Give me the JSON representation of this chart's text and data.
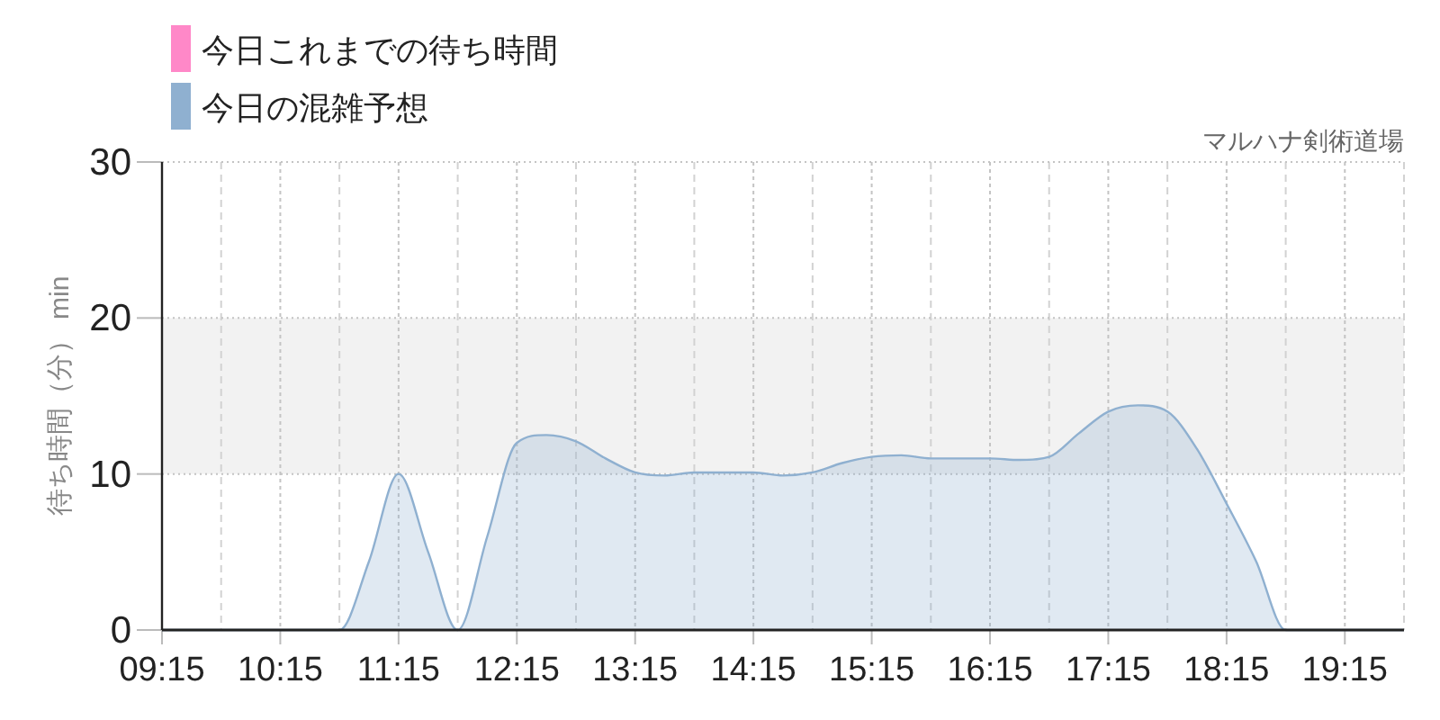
{
  "chart_data": {
    "type": "area",
    "title": "マルハナ剣術道場",
    "ylabel": "待ち時間（分） min",
    "x": [
      9.25,
      9.5,
      9.75,
      10,
      10.25,
      10.5,
      10.75,
      11,
      11.25,
      11.5,
      11.75,
      12,
      12.25,
      12.5,
      12.75,
      13,
      13.25,
      13.5,
      13.75,
      14,
      14.25,
      14.5,
      14.75,
      15,
      15.25,
      15.5,
      15.75,
      16,
      16.25,
      16.5,
      16.75,
      17,
      17.25,
      17.5,
      17.75,
      18,
      18.25,
      18.5,
      18.75,
      19,
      19.25,
      19.5,
      19.75
    ],
    "series": [
      {
        "name": "今日これまでの待ち時間",
        "color": "#ff88c8",
        "values": [
          null,
          null,
          null,
          null,
          null,
          null,
          null,
          null,
          null,
          null,
          null,
          null,
          null,
          null,
          null,
          null,
          null,
          null,
          null,
          null,
          null,
          null,
          null,
          null,
          null,
          null,
          null,
          null,
          null,
          null,
          null,
          null,
          null,
          null,
          null,
          null,
          null,
          null,
          null,
          null,
          null,
          null,
          null
        ]
      },
      {
        "name": "今日の混雑予想",
        "color": "#8fb0d0",
        "values": [
          0,
          0,
          0,
          0,
          0,
          0,
          0,
          4.4,
          10,
          5,
          0,
          6,
          12,
          12.5,
          12.1,
          11,
          10.1,
          9.9,
          10.1,
          10.1,
          10.1,
          9.9,
          10.1,
          10.7,
          11.1,
          11.2,
          11,
          11,
          11,
          10.9,
          11.1,
          12.6,
          14,
          14.4,
          14,
          11.6,
          8.1,
          4.4,
          0,
          0,
          0,
          0,
          0
        ]
      }
    ],
    "xlim": [
      9.25,
      19.75
    ],
    "xticks": [
      {
        "value": 9.25,
        "label": "09:15"
      },
      {
        "value": 9.75,
        "label": null
      },
      {
        "value": 10.25,
        "label": "10:15"
      },
      {
        "value": 10.75,
        "label": null
      },
      {
        "value": 11.25,
        "label": "11:15"
      },
      {
        "value": 11.75,
        "label": null
      },
      {
        "value": 12.25,
        "label": "12:15"
      },
      {
        "value": 12.75,
        "label": null
      },
      {
        "value": 13.25,
        "label": "13:15"
      },
      {
        "value": 13.75,
        "label": null
      },
      {
        "value": 14.25,
        "label": "14:15"
      },
      {
        "value": 14.75,
        "label": null
      },
      {
        "value": 15.25,
        "label": "15:15"
      },
      {
        "value": 15.75,
        "label": null
      },
      {
        "value": 16.25,
        "label": "16:15"
      },
      {
        "value": 16.75,
        "label": null
      },
      {
        "value": 17.25,
        "label": "17:15"
      },
      {
        "value": 17.75,
        "label": null
      },
      {
        "value": 18.25,
        "label": "18:15"
      },
      {
        "value": 18.75,
        "label": null
      },
      {
        "value": 19.25,
        "label": "19:15"
      },
      {
        "value": 19.75,
        "label": null
      }
    ],
    "ylim": [
      0,
      30
    ],
    "yticks": [
      0,
      10,
      20,
      30
    ],
    "bands": [
      {
        "axis": "y",
        "from": 10,
        "to": 20,
        "color": "#f2f2f2"
      }
    ],
    "grid": true,
    "legend": "top left"
  }
}
